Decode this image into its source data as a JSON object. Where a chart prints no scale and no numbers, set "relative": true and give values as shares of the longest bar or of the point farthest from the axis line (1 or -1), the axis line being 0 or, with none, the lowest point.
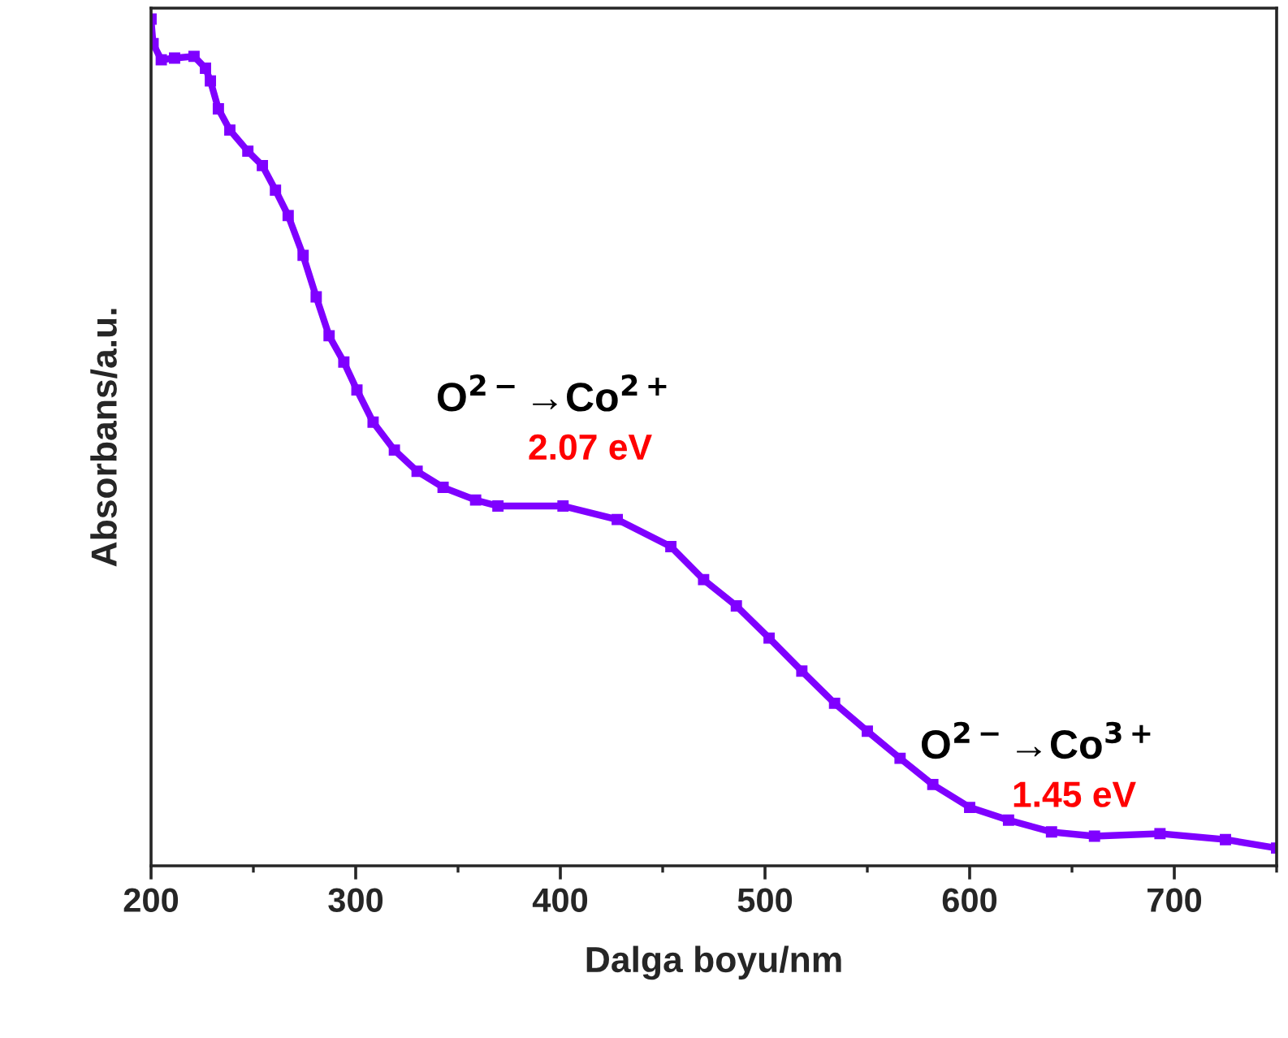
{
  "chart_data": {
    "type": "line",
    "relative": true,
    "xlabel": "Dalga boyu/nm",
    "ylabel": "Absorbans/a.u.",
    "xlim": [
      200,
      750
    ],
    "xticks": [
      200,
      300,
      400,
      500,
      600,
      700
    ],
    "tick_labels": "x",
    "marker": "square",
    "line_style": "solid",
    "grid": false,
    "legend": false,
    "annotations": [
      "O$^{2−}$→Co$^{2+}$",
      "2.07 eV",
      "O$^{2−}$→Co$^{3+}$",
      "1.45 eV"
    ],
    "series": [
      {
        "color": "#7f00ff",
        "x": [
          200,
          201,
          205,
          211.5,
          221,
          226.6,
          229,
          232.9,
          238.5,
          247.3,
          254.4,
          260.8,
          267,
          274.3,
          280.7,
          287,
          294.2,
          300.6,
          308.5,
          318.9,
          330,
          342.7,
          358.6,
          369.5,
          401.3,
          427.8,
          454,
          470,
          486,
          502,
          518,
          534,
          550,
          566,
          582,
          600,
          619,
          640,
          661,
          693,
          725,
          750
        ],
        "values": [
          1.0,
          0.971,
          0.952,
          0.954,
          0.956,
          0.942,
          0.927,
          0.894,
          0.869,
          0.844,
          0.827,
          0.798,
          0.768,
          0.721,
          0.672,
          0.626,
          0.595,
          0.562,
          0.524,
          0.491,
          0.466,
          0.447,
          0.432,
          0.425,
          0.425,
          0.409,
          0.377,
          0.338,
          0.307,
          0.269,
          0.23,
          0.192,
          0.159,
          0.127,
          0.096,
          0.069,
          0.054,
          0.04,
          0.035,
          0.038,
          0.031,
          0.021
        ]
      }
    ]
  }
}
